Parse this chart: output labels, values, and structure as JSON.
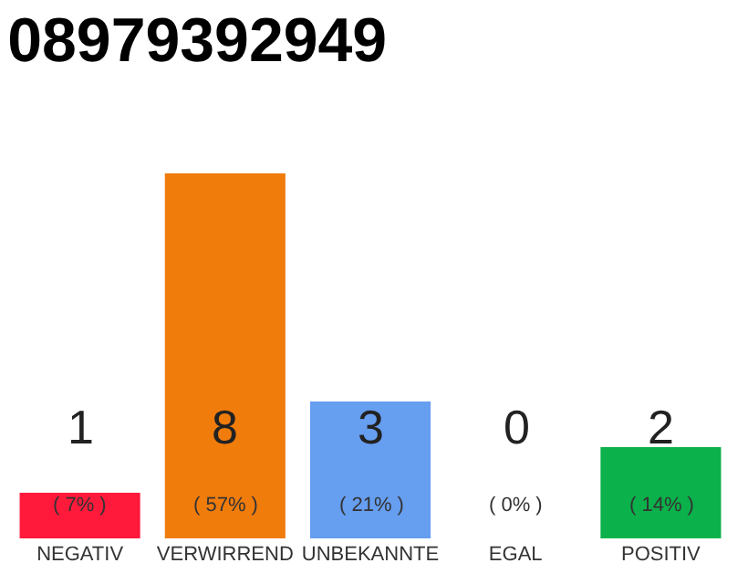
{
  "chart_data": {
    "type": "bar",
    "title": "08979392949",
    "categories": [
      "NEGATIV",
      "VERWIRREND",
      "UNBEKANNTE",
      "EGAL",
      "POSITIV"
    ],
    "values": [
      1,
      8,
      3,
      0,
      2
    ],
    "colors": [
      "#ff1a3c",
      "#f07c0c",
      "#669ef0",
      "#8bc34a",
      "#0bb14a"
    ],
    "value_labels": [
      "1\n( 7% )",
      "8\n( 57% )",
      "3\n( 21% )",
      "0\n( 0% )",
      "2\n( 14% )"
    ]
  }
}
